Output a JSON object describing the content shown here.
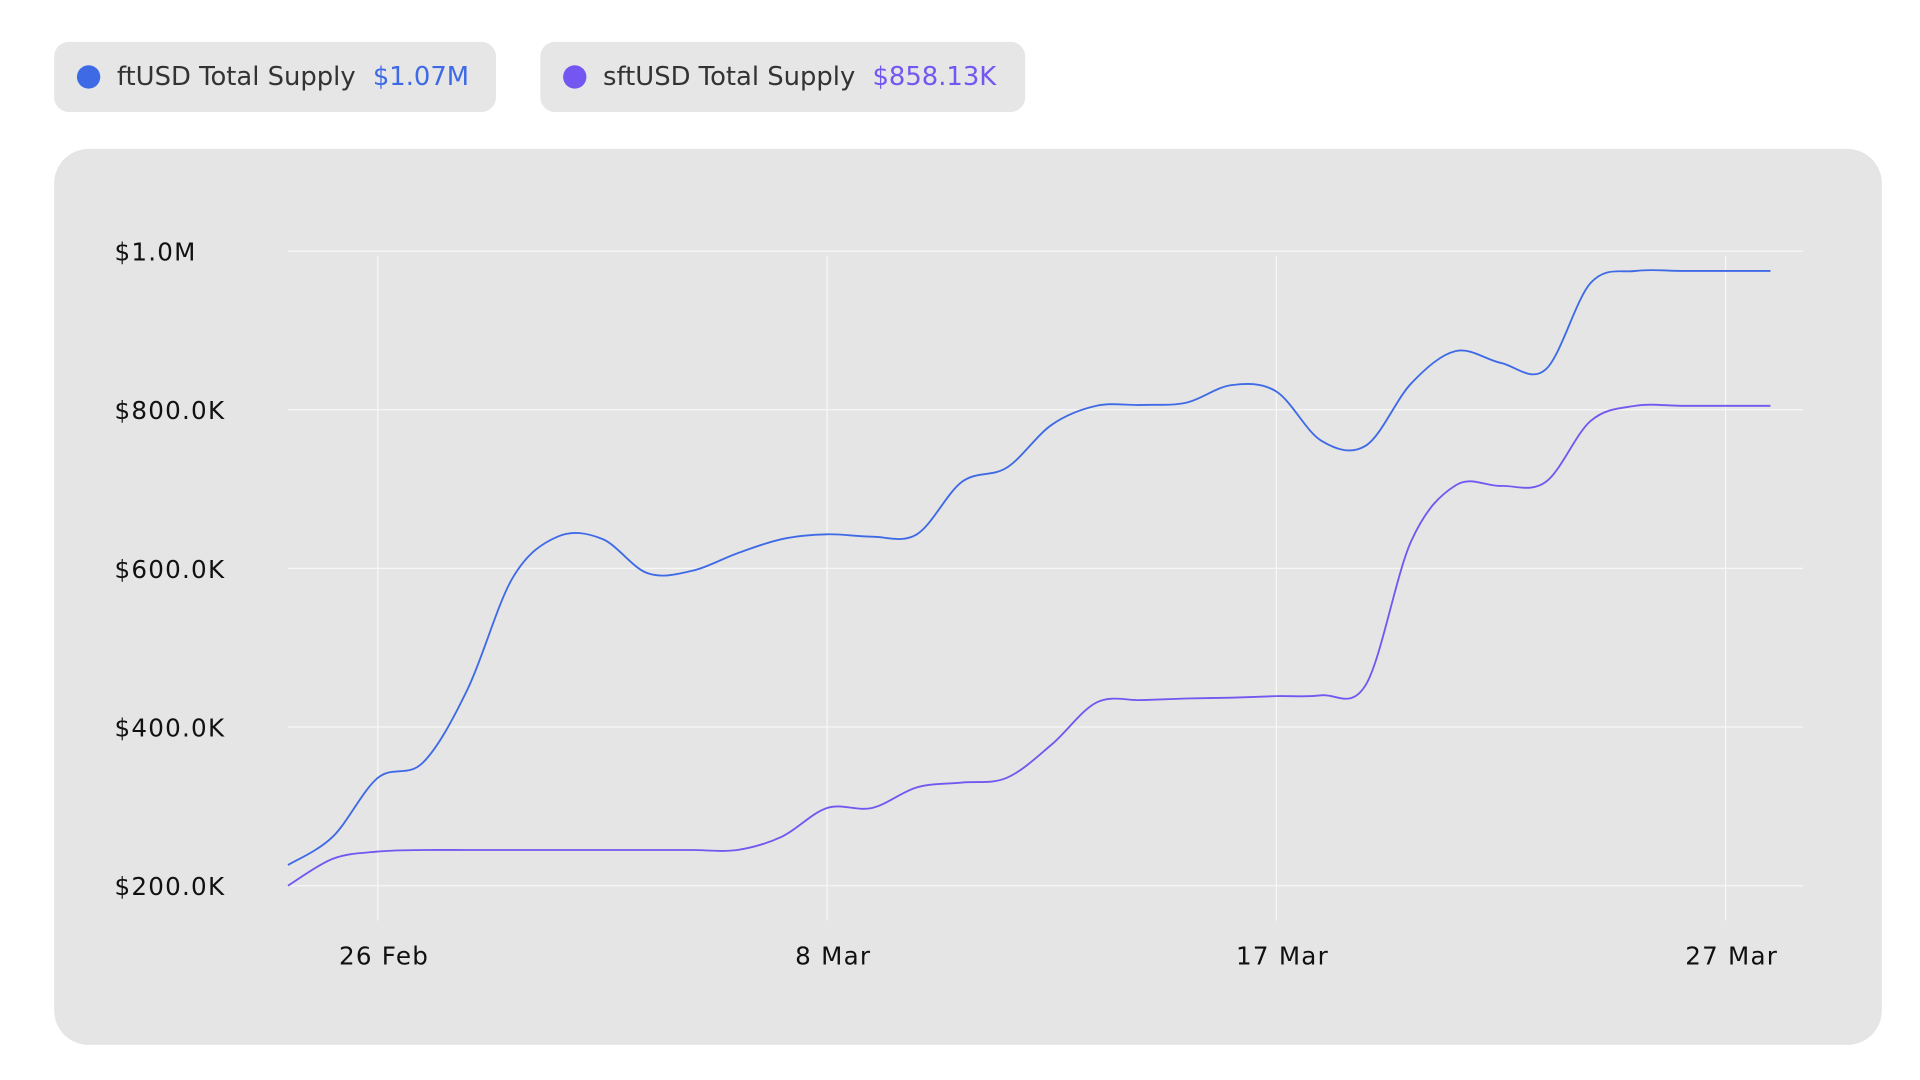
{
  "chart_data": {
    "type": "line",
    "categories": [
      null,
      null,
      "26 Feb",
      null,
      null,
      null,
      null,
      null,
      null,
      null,
      null,
      null,
      "8 Mar",
      null,
      null,
      null,
      null,
      null,
      null,
      null,
      null,
      null,
      "17 Mar",
      null,
      null,
      null,
      null,
      null,
      null,
      null,
      null,
      null,
      "27 Mar",
      null
    ],
    "series": [
      {
        "name": "ftUSD Total Supply",
        "color": "#3f6ae6",
        "total": 1070000,
        "total_label": "$1.07M",
        "values": [
          226000,
          262000,
          336000,
          355000,
          448000,
          588000,
          640000,
          637000,
          594000,
          597000,
          619000,
          637000,
          643000,
          640000,
          643000,
          709000,
          727000,
          781000,
          805000,
          806000,
          809000,
          831000,
          823000,
          761000,
          755000,
          833000,
          874000,
          859000,
          851000,
          960000,
          975000,
          975000,
          975000,
          975000
        ]
      },
      {
        "name": "sftUSD Total Supply",
        "color": "#7357f0",
        "total": 858130,
        "total_label": "$858.13K",
        "values": [
          200000,
          234000,
          243000,
          245000,
          245000,
          245000,
          245000,
          245000,
          245000,
          245000,
          245000,
          262000,
          298000,
          298000,
          324000,
          330000,
          336000,
          378000,
          431000,
          434000,
          436000,
          437000,
          439000,
          440000,
          454000,
          634000,
          705000,
          704000,
          709000,
          786000,
          805000,
          805000,
          805000,
          805000
        ]
      }
    ],
    "ylim": [
      156000,
      1000000
    ],
    "yticks": [
      {
        "value": 200000,
        "label": "$200.0K"
      },
      {
        "value": 400000,
        "label": "$400.0K"
      },
      {
        "value": 600000,
        "label": "$600.0K"
      },
      {
        "value": 800000,
        "label": "$800.0K"
      },
      {
        "value": 1000000,
        "label": "$1.0M"
      }
    ],
    "grid": true
  }
}
